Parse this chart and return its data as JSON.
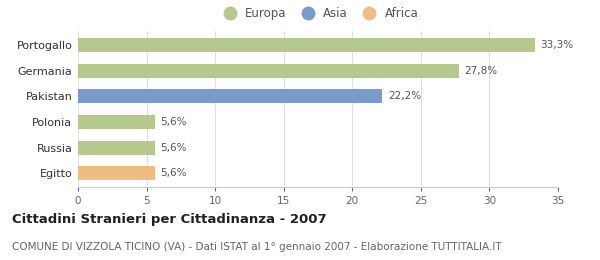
{
  "categories": [
    "Egitto",
    "Russia",
    "Polonia",
    "Pakistan",
    "Germania",
    "Portogallo"
  ],
  "values": [
    5.6,
    5.6,
    5.6,
    22.2,
    27.8,
    33.3
  ],
  "labels": [
    "5,6%",
    "5,6%",
    "5,6%",
    "22,2%",
    "27,8%",
    "33,3%"
  ],
  "colors": [
    "#f0bc82",
    "#b5c98e",
    "#b5c98e",
    "#7b9bc8",
    "#b5c98e",
    "#b5c98e"
  ],
  "legend_items": [
    {
      "label": "Europa",
      "color": "#b5c98e"
    },
    {
      "label": "Asia",
      "color": "#7b9bc8"
    },
    {
      "label": "Africa",
      "color": "#f0bc82"
    }
  ],
  "xlim": [
    0,
    35
  ],
  "xticks": [
    0,
    5,
    10,
    15,
    20,
    25,
    30,
    35
  ],
  "title": "Cittadini Stranieri per Cittadinanza - 2007",
  "subtitle": "COMUNE DI VIZZOLA TICINO (VA) - Dati ISTAT al 1° gennaio 2007 - Elaborazione TUTTITALIA.IT",
  "title_fontsize": 9.5,
  "subtitle_fontsize": 7.5,
  "background_color": "#ffffff",
  "bar_height": 0.55
}
